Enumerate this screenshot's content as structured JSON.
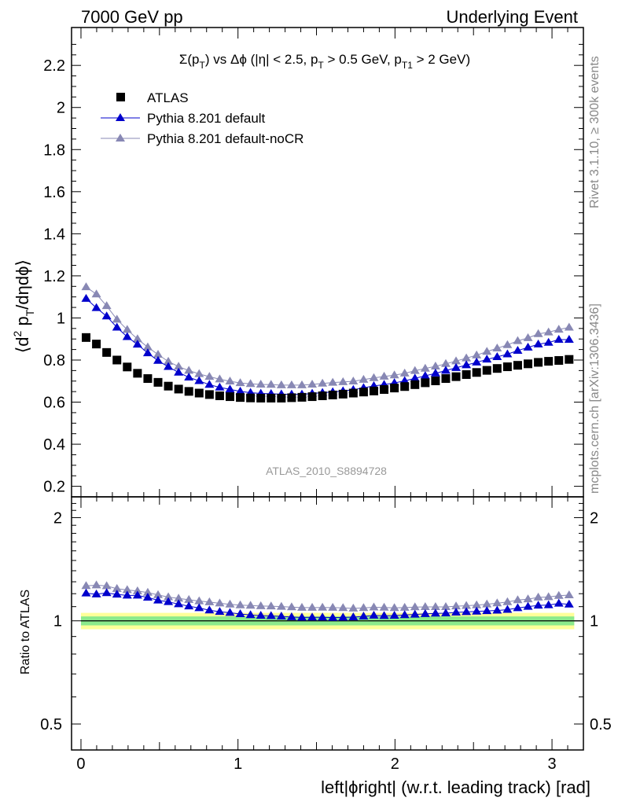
{
  "header": {
    "left": "7000 GeV pp",
    "right": "Underlying Event"
  },
  "side_text": {
    "upper": "Rivet 3.1.10, ≥ 300k events",
    "lower": "mcplots.cern.ch [arXiv:1306.3436]"
  },
  "colors": {
    "atlas": "#000000",
    "default": "#0000cc",
    "noCR": "#8888b4",
    "band_inner": "#8cea8c",
    "band_outer": "#ffff99"
  },
  "chart_data": [
    {
      "type": "scatter",
      "panel": "main",
      "title": "Σ(p_T) vs Δϕ (|η| < 2.5, p_T > 0.5 GeV, p_T1 > 2 GeV)",
      "title_parts": {
        "a": "Σ(p",
        "a_sub": "T",
        "b": ") vs Δϕ (|η| < 2.5, p",
        "b_sub": "T",
        "c": " > 0.5 GeV, p",
        "c_sub": "T1",
        "d": " > 2 GeV)"
      },
      "ylabel": "⟨d² p_T/dηdϕ⟩",
      "ylabel_parts": {
        "open": "⟨d",
        "sup": "2",
        "p": " p",
        "sub": "T",
        "rest": "/dηdϕ⟩"
      },
      "xlabel": "",
      "xlim": [
        -0.06,
        3.2
      ],
      "ylim": [
        0.15,
        2.38
      ],
      "x_ticks": [
        0,
        1,
        2,
        3
      ],
      "y_ticks": [
        0.2,
        0.4,
        0.6,
        0.8,
        1,
        1.2,
        1.4,
        1.6,
        1.8,
        2,
        2.2
      ],
      "y_tick_labels": [
        "0.2",
        "0.4",
        "0.6",
        "0.8",
        "1",
        "1.2",
        "1.4",
        "1.6",
        "1.8",
        "2",
        "2.2"
      ],
      "legend_position": "top-left",
      "analysis_tag": "ATLAS_2010_S8894728",
      "x": [
        0.0327,
        0.0982,
        0.1636,
        0.2291,
        0.2945,
        0.36,
        0.4254,
        0.4909,
        0.5563,
        0.6218,
        0.6872,
        0.7527,
        0.8181,
        0.8836,
        0.949,
        1.0145,
        1.0799,
        1.1454,
        1.2108,
        1.2763,
        1.3417,
        1.4072,
        1.4726,
        1.5381,
        1.6035,
        1.669,
        1.7344,
        1.7999,
        1.8653,
        1.9308,
        1.9962,
        2.0617,
        2.1271,
        2.1926,
        2.258,
        2.3235,
        2.3889,
        2.4544,
        2.5198,
        2.5853,
        2.6507,
        2.7162,
        2.7816,
        2.8471,
        2.9125,
        2.978,
        3.0434,
        3.1089
      ],
      "series": [
        {
          "name": "ATLAS",
          "marker": "square",
          "line": false,
          "values": [
            0.907,
            0.876,
            0.836,
            0.8,
            0.767,
            0.737,
            0.712,
            0.694,
            0.676,
            0.662,
            0.651,
            0.643,
            0.636,
            0.63,
            0.626,
            0.622,
            0.62,
            0.619,
            0.619,
            0.619,
            0.621,
            0.623,
            0.626,
            0.63,
            0.634,
            0.638,
            0.643,
            0.648,
            0.653,
            0.66,
            0.667,
            0.674,
            0.683,
            0.692,
            0.701,
            0.712,
            0.721,
            0.731,
            0.741,
            0.751,
            0.76,
            0.768,
            0.775,
            0.782,
            0.789,
            0.794,
            0.798,
            0.803
          ]
        },
        {
          "name": "Pythia 8.201 default",
          "marker": "triangle",
          "line": true,
          "values": [
            1.092,
            1.048,
            1.008,
            0.955,
            0.91,
            0.874,
            0.833,
            0.797,
            0.768,
            0.741,
            0.718,
            0.701,
            0.683,
            0.67,
            0.661,
            0.651,
            0.645,
            0.641,
            0.64,
            0.638,
            0.637,
            0.637,
            0.641,
            0.645,
            0.648,
            0.653,
            0.659,
            0.668,
            0.677,
            0.683,
            0.691,
            0.701,
            0.713,
            0.725,
            0.737,
            0.75,
            0.763,
            0.776,
            0.789,
            0.803,
            0.815,
            0.828,
            0.845,
            0.86,
            0.875,
            0.883,
            0.897,
            0.897
          ]
        },
        {
          "name": "Pythia 8.201 default-noCR",
          "marker": "triangle",
          "line": true,
          "values": [
            1.147,
            1.113,
            1.057,
            0.993,
            0.944,
            0.9,
            0.861,
            0.826,
            0.793,
            0.769,
            0.75,
            0.734,
            0.721,
            0.709,
            0.699,
            0.691,
            0.687,
            0.684,
            0.683,
            0.681,
            0.681,
            0.681,
            0.684,
            0.689,
            0.693,
            0.696,
            0.699,
            0.707,
            0.715,
            0.722,
            0.728,
            0.737,
            0.749,
            0.76,
            0.77,
            0.782,
            0.795,
            0.809,
            0.823,
            0.84,
            0.856,
            0.872,
            0.891,
            0.905,
            0.924,
            0.932,
            0.945,
            0.955
          ]
        }
      ]
    },
    {
      "type": "line",
      "panel": "ratio",
      "ylabel": "Ratio to ATLAS",
      "xlabel": "left|ϕright| (w.r.t. leading track) [rad]",
      "xlim": [
        -0.06,
        3.2
      ],
      "ylim": [
        0.42,
        2.3
      ],
      "x_ticks": [
        0,
        1,
        2,
        3
      ],
      "x_tick_labels": [
        "0",
        "1",
        "2",
        "3"
      ],
      "y_ticks": [
        0.5,
        1,
        2
      ],
      "y_tick_labels": [
        "0.5",
        "1",
        "2"
      ],
      "band_inner": [
        0.97,
        1.03
      ],
      "band_outer": [
        0.945,
        1.055
      ],
      "x": [
        0.0327,
        0.0982,
        0.1636,
        0.2291,
        0.2945,
        0.36,
        0.4254,
        0.4909,
        0.5563,
        0.6218,
        0.6872,
        0.7527,
        0.8181,
        0.8836,
        0.949,
        1.0145,
        1.0799,
        1.1454,
        1.2108,
        1.2763,
        1.3417,
        1.4072,
        1.4726,
        1.5381,
        1.6035,
        1.669,
        1.7344,
        1.7999,
        1.8653,
        1.9308,
        1.9962,
        2.0617,
        2.1271,
        2.1926,
        2.258,
        2.3235,
        2.3889,
        2.4544,
        2.5198,
        2.5853,
        2.6507,
        2.7162,
        2.7816,
        2.8471,
        2.9125,
        2.978,
        3.0434,
        3.1089
      ],
      "series": [
        {
          "name": "Pythia 8.201 default",
          "marker": "triangle",
          "values": [
            1.204,
            1.196,
            1.206,
            1.194,
            1.186,
            1.186,
            1.17,
            1.148,
            1.136,
            1.119,
            1.103,
            1.09,
            1.074,
            1.063,
            1.056,
            1.047,
            1.04,
            1.036,
            1.034,
            1.031,
            1.026,
            1.023,
            1.024,
            1.024,
            1.022,
            1.023,
            1.025,
            1.031,
            1.037,
            1.035,
            1.036,
            1.04,
            1.044,
            1.048,
            1.051,
            1.053,
            1.058,
            1.062,
            1.065,
            1.069,
            1.072,
            1.078,
            1.09,
            1.1,
            1.109,
            1.112,
            1.124,
            1.117
          ]
        },
        {
          "name": "Pythia 8.201 default-noCR",
          "marker": "triangle",
          "values": [
            1.265,
            1.271,
            1.264,
            1.241,
            1.231,
            1.221,
            1.209,
            1.19,
            1.173,
            1.162,
            1.152,
            1.142,
            1.134,
            1.125,
            1.117,
            1.111,
            1.108,
            1.105,
            1.103,
            1.1,
            1.097,
            1.093,
            1.093,
            1.094,
            1.093,
            1.091,
            1.087,
            1.091,
            1.095,
            1.094,
            1.091,
            1.093,
            1.097,
            1.098,
            1.098,
            1.098,
            1.103,
            1.107,
            1.111,
            1.118,
            1.126,
            1.135,
            1.15,
            1.157,
            1.171,
            1.174,
            1.184,
            1.189
          ]
        }
      ]
    }
  ]
}
